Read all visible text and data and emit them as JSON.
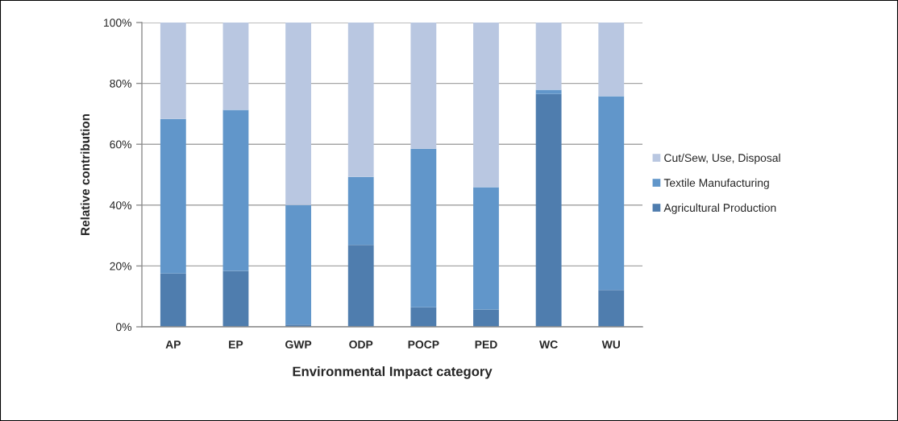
{
  "chart_data": {
    "type": "bar",
    "stacked": true,
    "xlabel": "Environmental Impact category",
    "ylabel": "Relative contribution",
    "categories": [
      "AP",
      "EP",
      "GWP",
      "ODP",
      "POCP",
      "PED",
      "WC",
      "WU"
    ],
    "series": [
      {
        "name": "Agricultural Production",
        "color": "#4f7dae",
        "values": [
          17.5,
          18.4,
          0.7,
          26.9,
          6.4,
          5.7,
          76.5,
          12.1
        ]
      },
      {
        "name": "Textile Manufacturing",
        "color": "#6196ca",
        "values": [
          50.8,
          52.9,
          39.3,
          22.4,
          52.1,
          40.2,
          1.4,
          63.7
        ]
      },
      {
        "name": "Cut/Sew, Use, Disposal",
        "color": "#b9c7e1",
        "values": [
          31.7,
          28.7,
          60.0,
          50.7,
          41.5,
          54.1,
          22.1,
          24.2
        ]
      }
    ],
    "ylim": [
      0,
      100
    ],
    "yticks": [
      {
        "value": 0,
        "label": "0%"
      },
      {
        "value": 20,
        "label": "20%"
      },
      {
        "value": 40,
        "label": "40%"
      },
      {
        "value": 60,
        "label": "60%"
      },
      {
        "value": 80,
        "label": "80%"
      },
      {
        "value": 100,
        "label": "100%"
      }
    ],
    "grid": "y",
    "legend": "right"
  }
}
